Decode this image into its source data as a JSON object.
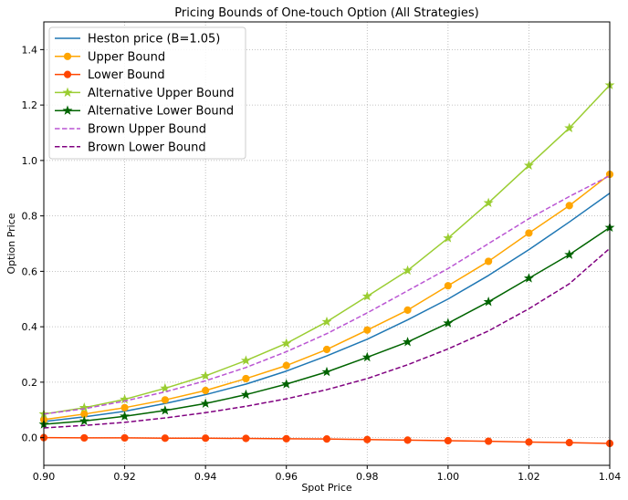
{
  "chart_data": {
    "type": "line",
    "title": "Pricing Bounds of One-touch Option (All Strategies)",
    "xlabel": "Spot Price",
    "ylabel": "Option Price",
    "xlim": [
      0.9,
      1.04
    ],
    "ylim": [
      -0.1,
      1.5
    ],
    "xticks": [
      0.9,
      0.92,
      0.94,
      0.96,
      0.98,
      1.0,
      1.02,
      1.04
    ],
    "yticks": [
      0.0,
      0.2,
      0.4,
      0.6,
      0.8,
      1.0,
      1.2,
      1.4
    ],
    "xtick_labels": [
      "0.90",
      "0.92",
      "0.94",
      "0.96",
      "0.98",
      "1.00",
      "1.02",
      "1.04"
    ],
    "ytick_labels": [
      "0.0",
      "0.2",
      "0.4",
      "0.6",
      "0.8",
      "1.0",
      "1.2",
      "1.4"
    ],
    "grid": true,
    "legend_position": "top-left",
    "x": [
      0.9,
      0.91,
      0.92,
      0.93,
      0.94,
      0.95,
      0.96,
      0.97,
      0.98,
      0.99,
      1.0,
      1.01,
      1.02,
      1.03,
      1.04
    ],
    "series": [
      {
        "name": "Heston price (B=1.05)",
        "color": "#1f77b4",
        "marker": "none",
        "dash": "solid",
        "values": [
          0.058,
          0.075,
          0.095,
          0.123,
          0.155,
          0.193,
          0.24,
          0.295,
          0.355,
          0.425,
          0.5,
          0.585,
          0.678,
          0.778,
          0.882
        ]
      },
      {
        "name": "Upper Bound",
        "color": "#ffa500",
        "marker": "circle",
        "dash": "solid",
        "values": [
          0.065,
          0.085,
          0.108,
          0.136,
          0.17,
          0.213,
          0.26,
          0.318,
          0.388,
          0.46,
          0.548,
          0.636,
          0.738,
          0.837,
          0.95
        ]
      },
      {
        "name": "Lower Bound",
        "color": "#ff4500",
        "marker": "circle",
        "dash": "solid",
        "values": [
          0.0,
          -0.001,
          -0.001,
          -0.002,
          -0.002,
          -0.003,
          -0.004,
          -0.005,
          -0.007,
          -0.009,
          -0.011,
          -0.013,
          -0.016,
          -0.018,
          -0.021
        ]
      },
      {
        "name": "Alternative Upper Bound",
        "color": "#9acd32",
        "marker": "star",
        "dash": "solid",
        "values": [
          0.085,
          0.108,
          0.138,
          0.178,
          0.223,
          0.278,
          0.34,
          0.418,
          0.51,
          0.603,
          0.72,
          0.847,
          0.982,
          1.117,
          1.272
        ]
      },
      {
        "name": "Alternative Lower Bound",
        "color": "#006400",
        "marker": "star",
        "dash": "solid",
        "values": [
          0.048,
          0.06,
          0.077,
          0.098,
          0.123,
          0.155,
          0.193,
          0.237,
          0.29,
          0.345,
          0.413,
          0.49,
          0.575,
          0.66,
          0.758
        ]
      },
      {
        "name": "Brown Upper Bound",
        "color": "#ba55d3",
        "marker": "none",
        "dash": "dashed",
        "values": [
          0.085,
          0.104,
          0.132,
          0.165,
          0.205,
          0.253,
          0.31,
          0.375,
          0.45,
          0.53,
          0.61,
          0.7,
          0.79,
          0.87,
          0.945
        ]
      },
      {
        "name": "Brown Lower Bound",
        "color": "#800080",
        "marker": "none",
        "dash": "dashed",
        "values": [
          0.035,
          0.044,
          0.055,
          0.071,
          0.09,
          0.113,
          0.14,
          0.173,
          0.213,
          0.263,
          0.32,
          0.385,
          0.465,
          0.555,
          0.683
        ]
      }
    ]
  }
}
